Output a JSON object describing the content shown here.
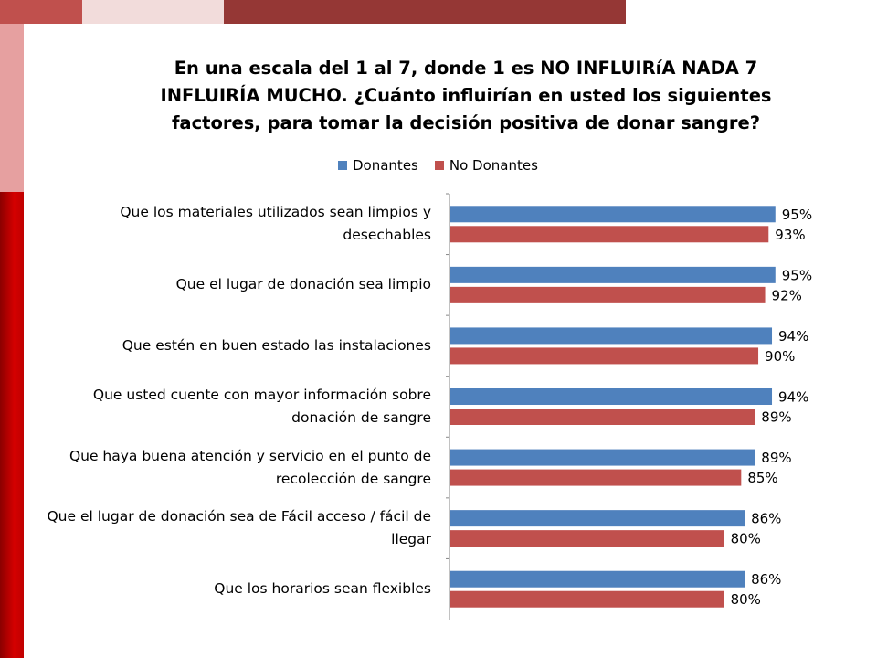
{
  "chart_data": {
    "type": "bar",
    "orientation": "horizontal",
    "title": "En una escala del 1 al 7, donde 1 es NO INFLUIRíA NADA 7 INFLUIRÍA MUCHO. ¿Cuánto influirían en usted los siguientes factores, para tomar la decisión positiva de donar sangre?",
    "categories": [
      "Que los materiales utilizados sean limpios y desechables",
      "Que el lugar de donación sea limpio",
      "Que estén en buen estado las instalaciones",
      "Que usted cuente con mayor información sobre donación de sangre",
      "Que haya buena atención y servicio en el punto de recolección de sangre",
      "Que el lugar de donación sea de Fácil acceso / fácil de llegar",
      "Que los horarios sean flexibles"
    ],
    "series": [
      {
        "name": "Donantes",
        "color": "#4f81bd",
        "values": [
          95,
          95,
          94,
          94,
          89,
          86,
          86
        ]
      },
      {
        "name": "No Donantes",
        "color": "#c0504d",
        "values": [
          93,
          92,
          90,
          89,
          85,
          80,
          80
        ]
      }
    ],
    "value_suffix": "%",
    "xlim": [
      0,
      100
    ],
    "legend_position": "top",
    "grid": false
  }
}
